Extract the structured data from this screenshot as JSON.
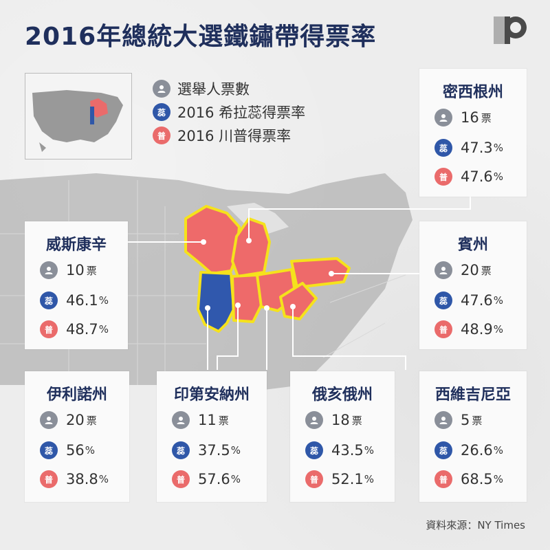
{
  "title": "2016年總統大選鐵鏽帶得票率",
  "legend": {
    "electoral_votes": "選舉人票數",
    "clinton": "2016 希拉蕊得票率",
    "trump": "2016 川普得票率"
  },
  "badges": {
    "clinton": "蕊",
    "trump": "普"
  },
  "unit": "票",
  "pct": "%",
  "colors": {
    "clinton": "#2f57a8",
    "trump": "#ea6b6b",
    "title": "#1f2f5c",
    "person": "#8a8f99"
  },
  "icons": {
    "person": "person-icon",
    "logo": "p-logo-icon"
  },
  "states": {
    "michigan": {
      "name": "密西根州",
      "votes": "16",
      "clinton": "47.3",
      "trump": "47.6"
    },
    "pennsylvania": {
      "name": "賓州",
      "votes": "20",
      "clinton": "47.6",
      "trump": "48.9"
    },
    "wisconsin": {
      "name": "威斯康辛",
      "votes": "10",
      "clinton": "46.1",
      "trump": "48.7"
    },
    "illinois": {
      "name": "伊利諾州",
      "votes": "20",
      "clinton": "56",
      "trump": "38.8"
    },
    "indiana": {
      "name": "印第安納州",
      "votes": "11",
      "clinton": "37.5",
      "trump": "57.6"
    },
    "ohio": {
      "name": "俄亥俄州",
      "votes": "18",
      "clinton": "43.5",
      "trump": "52.1"
    },
    "west_virginia": {
      "name": "西維吉尼亞",
      "votes": "5",
      "clinton": "26.6",
      "trump": "68.5"
    }
  },
  "source": "資料來源：NY Times"
}
